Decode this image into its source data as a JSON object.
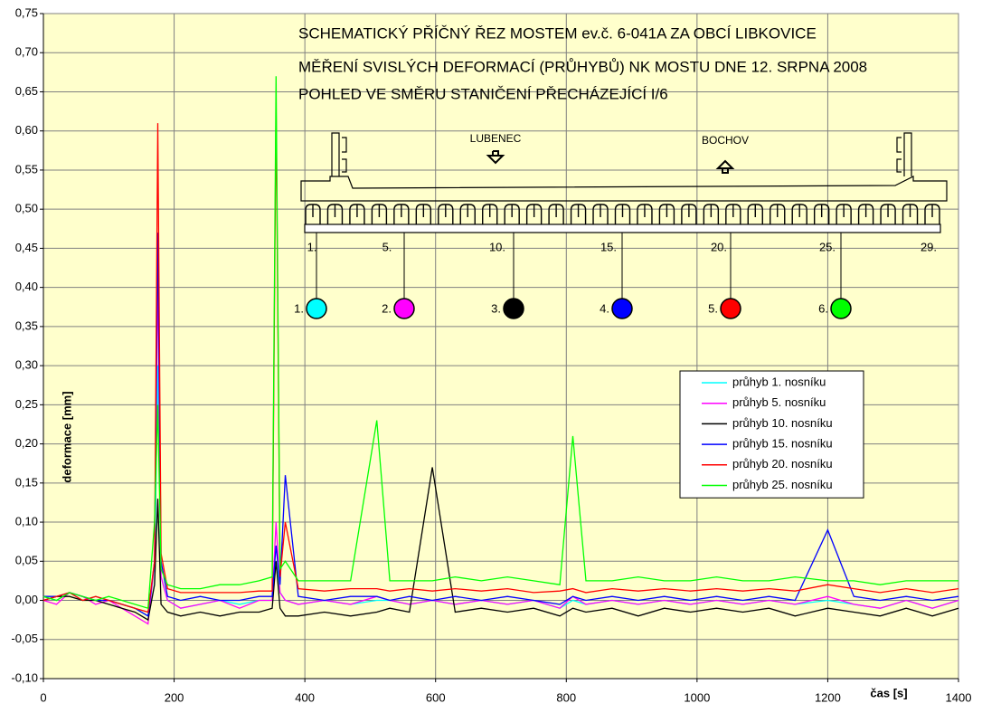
{
  "chart_data": {
    "type": "line",
    "title_lines": [
      "SCHEMATICKÝ PŘÍČNÝ ŘEZ MOSTEM ev.č. 6-041A ZA OBCÍ LIBKOVICE",
      "MĚŘENÍ SVISLÝCH DEFORMACÍ (PRŮHYBŮ) NK MOSTU DNE 12. SRPNA 2008",
      "POHLED VE SMĚRU STANIČENÍ PŘECHÁZEJÍCÍ I/6"
    ],
    "diagram": {
      "direction_labels": [
        "LUBENEC",
        "BOCHOV"
      ],
      "beam_labels": [
        "1.",
        "5.",
        "10.",
        "15.",
        "20.",
        "25.",
        "29."
      ],
      "sensor_labels": [
        "1.",
        "2.",
        "3.",
        "4.",
        "5.",
        "6."
      ]
    },
    "y_label": "deformace [mm]",
    "x_label": "čas [s]",
    "xlim": [
      0,
      1400
    ],
    "xticks": [
      0,
      200,
      400,
      600,
      800,
      1000,
      1200,
      1400
    ],
    "ylim": [
      -0.1,
      0.75
    ],
    "yticks": [
      {
        "value": -0.1,
        "label": "-0,10"
      },
      {
        "value": -0.05,
        "label": "-0,05"
      },
      {
        "value": 0,
        "label": "0,00"
      },
      {
        "value": 0.05,
        "label": "0,05"
      },
      {
        "value": 0.1,
        "label": "0,10"
      },
      {
        "value": 0.15,
        "label": "0,15"
      },
      {
        "value": 0.2,
        "label": "0,20"
      },
      {
        "value": 0.25,
        "label": "0,25"
      },
      {
        "value": 0.3,
        "label": "0,30"
      },
      {
        "value": 0.35,
        "label": "0,35"
      },
      {
        "value": 0.4,
        "label": "0,40"
      },
      {
        "value": 0.45,
        "label": "0,45"
      },
      {
        "value": 0.5,
        "label": "0,50"
      },
      {
        "value": 0.55,
        "label": "0,55"
      },
      {
        "value": 0.6,
        "label": "0,60"
      },
      {
        "value": 0.65,
        "label": "0,65"
      },
      {
        "value": 0.7,
        "label": "0,70"
      },
      {
        "value": 0.75,
        "label": "0,75"
      }
    ],
    "grid": true,
    "legend": "right",
    "x": [
      0,
      20,
      40,
      60,
      80,
      100,
      120,
      140,
      160,
      170,
      175,
      180,
      190,
      210,
      240,
      270,
      300,
      330,
      350,
      356,
      362,
      370,
      390,
      430,
      470,
      510,
      530,
      560,
      595,
      630,
      670,
      710,
      750,
      790,
      810,
      830,
      870,
      910,
      950,
      990,
      1030,
      1070,
      1110,
      1150,
      1200,
      1240,
      1280,
      1320,
      1360,
      1400
    ],
    "series": [
      {
        "name": "průhyb 1. nosníku",
        "color": "#00ffff",
        "values": [
          0.005,
          0.0,
          0.01,
          0.0,
          0.005,
          0.0,
          -0.005,
          -0.01,
          -0.02,
          0.02,
          0.3,
          0.03,
          0.0,
          -0.01,
          -0.005,
          0.0,
          -0.005,
          0.0,
          0.0,
          0.05,
          0.01,
          0.0,
          -0.005,
          0.0,
          -0.005,
          0.0,
          0.0,
          -0.005,
          0.0,
          -0.005,
          0.0,
          -0.005,
          0.0,
          -0.01,
          0.0,
          -0.005,
          0.0,
          -0.005,
          0.0,
          -0.005,
          0.0,
          -0.005,
          0.0,
          -0.005,
          0.0,
          -0.005,
          -0.01,
          0.0,
          -0.01,
          0.0
        ]
      },
      {
        "name": "průhyb 5. nosníku",
        "color": "#ff00ff",
        "values": [
          0.0,
          -0.005,
          0.01,
          0.005,
          -0.005,
          0.0,
          -0.01,
          -0.02,
          -0.03,
          0.05,
          0.42,
          0.03,
          0.0,
          -0.01,
          -0.005,
          0.0,
          -0.01,
          0.0,
          0.0,
          0.1,
          0.01,
          0.0,
          -0.005,
          0.0,
          -0.005,
          0.005,
          0.0,
          -0.005,
          0.0,
          -0.005,
          0.0,
          -0.005,
          0.0,
          -0.01,
          0.005,
          -0.005,
          0.0,
          -0.005,
          0.0,
          -0.005,
          0.0,
          -0.005,
          0.0,
          -0.005,
          0.005,
          -0.005,
          -0.01,
          0.0,
          -0.01,
          0.0
        ]
      },
      {
        "name": "průhyb 10. nosníku",
        "color": "#000000",
        "values": [
          0.0,
          0.005,
          0.005,
          0.0,
          0.0,
          -0.005,
          -0.01,
          -0.015,
          -0.025,
          0.02,
          0.13,
          -0.005,
          -0.015,
          -0.02,
          -0.015,
          -0.02,
          -0.015,
          -0.015,
          -0.01,
          0.05,
          -0.01,
          -0.02,
          -0.02,
          -0.015,
          -0.02,
          -0.015,
          -0.01,
          -0.015,
          0.17,
          -0.015,
          -0.01,
          -0.015,
          -0.01,
          -0.02,
          -0.01,
          -0.015,
          -0.01,
          -0.02,
          -0.01,
          -0.015,
          -0.01,
          -0.015,
          -0.01,
          -0.02,
          -0.01,
          -0.015,
          -0.02,
          -0.01,
          -0.02,
          -0.01
        ]
      },
      {
        "name": "průhyb 15. nosníku",
        "color": "#0000ff",
        "values": [
          0.005,
          0.005,
          0.01,
          0.005,
          0.0,
          0.0,
          -0.005,
          -0.01,
          -0.02,
          0.05,
          0.47,
          0.05,
          0.005,
          0.0,
          0.005,
          0.0,
          0.0,
          0.005,
          0.005,
          0.07,
          0.02,
          0.16,
          0.005,
          0.0,
          0.005,
          0.005,
          0.0,
          0.005,
          0.0,
          0.005,
          0.0,
          0.005,
          0.0,
          -0.005,
          0.005,
          0.0,
          0.005,
          0.0,
          0.005,
          0.0,
          0.005,
          0.0,
          0.005,
          0.0,
          0.09,
          0.005,
          0.0,
          0.005,
          0.0,
          0.005
        ]
      },
      {
        "name": "průhyb 20. nosníku",
        "color": "#ff0000",
        "values": [
          0.0,
          0.005,
          0.01,
          0.0,
          0.005,
          0.0,
          -0.005,
          -0.01,
          -0.015,
          0.05,
          0.61,
          0.06,
          0.015,
          0.01,
          0.01,
          0.01,
          0.01,
          0.012,
          0.012,
          0.63,
          0.03,
          0.1,
          0.015,
          0.012,
          0.015,
          0.015,
          0.012,
          0.015,
          0.012,
          0.015,
          0.012,
          0.015,
          0.01,
          0.012,
          0.015,
          0.01,
          0.015,
          0.012,
          0.015,
          0.012,
          0.015,
          0.012,
          0.015,
          0.012,
          0.02,
          0.015,
          0.01,
          0.015,
          0.01,
          0.015
        ]
      },
      {
        "name": "průhyb 25. nosníku",
        "color": "#00ff00",
        "values": [
          0.005,
          0.0,
          0.01,
          0.005,
          0.0,
          0.005,
          0.0,
          -0.005,
          -0.01,
          0.1,
          0.25,
          0.04,
          0.02,
          0.015,
          0.015,
          0.02,
          0.02,
          0.025,
          0.03,
          0.67,
          0.04,
          0.05,
          0.025,
          0.025,
          0.025,
          0.23,
          0.025,
          0.025,
          0.025,
          0.03,
          0.025,
          0.03,
          0.025,
          0.02,
          0.21,
          0.025,
          0.025,
          0.03,
          0.025,
          0.025,
          0.03,
          0.025,
          0.025,
          0.03,
          0.025,
          0.025,
          0.02,
          0.025,
          0.025,
          0.025
        ]
      }
    ]
  }
}
